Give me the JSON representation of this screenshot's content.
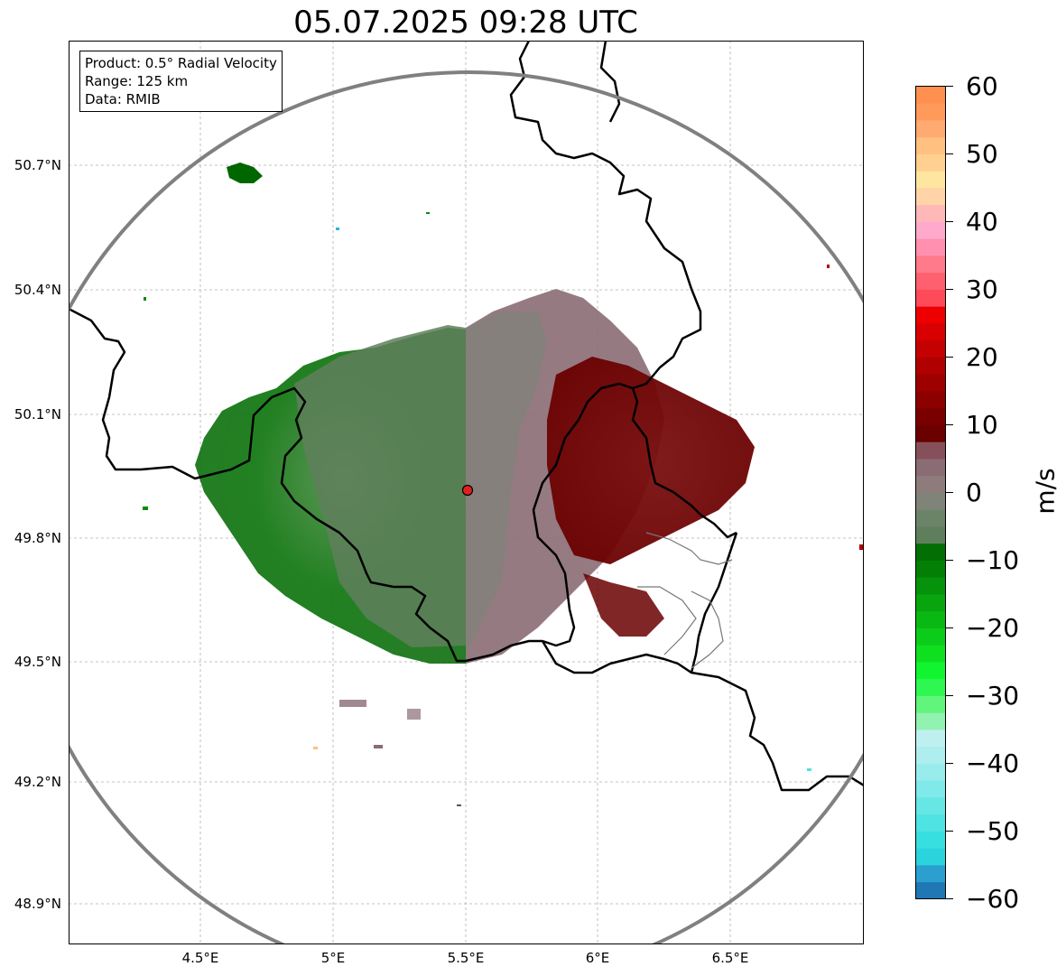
{
  "title": "05.07.2025 09:28 UTC",
  "info": {
    "product": "Product: 0.5° Radial Velocity",
    "range": "Range: 125 km",
    "source": "Data: RMIB"
  },
  "lat_ticks": [
    "50.7°N",
    "50.4°N",
    "50.1°N",
    "49.8°N",
    "49.5°N",
    "49.2°N",
    "48.9°N"
  ],
  "lon_ticks": [
    "4.5°E",
    "5°E",
    "5.5°E",
    "6°E",
    "6.5°E"
  ],
  "colorbar": {
    "label": "m/s",
    "ticks": [
      "60",
      "50",
      "40",
      "30",
      "20",
      "10",
      "0",
      "−10",
      "−20",
      "−30",
      "−40",
      "−50",
      "−60"
    ],
    "range": [
      -60,
      60
    ],
    "colors_bottom_to_top": [
      "#1f77b4",
      "#2a9fd0",
      "#2bd4dc",
      "#38dfe0",
      "#4fe3e3",
      "#67e6e6",
      "#80e9e9",
      "#98ecec",
      "#aeeeee",
      "#bff0f0",
      "#92f2b0",
      "#62f57c",
      "#2ef752",
      "#11f530",
      "#0ee020",
      "#0ccc1a",
      "#0ab814",
      "#08a50f",
      "#06920a",
      "#047f06",
      "#036e03",
      "#5f7f5c",
      "#6b8468",
      "#7f8378",
      "#8e7c7c",
      "#8a6c74",
      "#86505a",
      "#6a0000",
      "#7a0000",
      "#8c0000",
      "#9e0000",
      "#b00000",
      "#c40000",
      "#d80000",
      "#ee0000",
      "#ff4a5a",
      "#ff6070",
      "#ff7a8a",
      "#ff90b0",
      "#ffaacc",
      "#ffb8b8",
      "#ffd4a8",
      "#ffe6a0",
      "#ffd090",
      "#ffc080",
      "#ffaa70",
      "#ff9a5a",
      "#ff9050"
    ]
  },
  "radar_site": {
    "lon": 5.505,
    "lat": 49.914
  }
}
